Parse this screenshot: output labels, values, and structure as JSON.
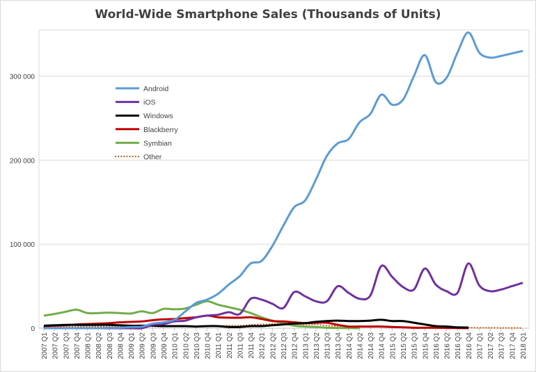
{
  "chart_data": {
    "type": "line",
    "title": "World-Wide Smartphone Sales (Thousands of Units)",
    "xlabel": "",
    "ylabel": "",
    "ylim": [
      0,
      355000
    ],
    "yticks": [
      0,
      100000,
      200000,
      300000
    ],
    "ytick_labels": [
      "0",
      "100 000",
      "200 000",
      "300 000"
    ],
    "grid": "horizontal",
    "legend_position": "top-left",
    "categories": [
      "2007 Q1",
      "2007 Q2",
      "2007 Q3",
      "2007 Q4",
      "2008 Q1",
      "2008 Q2",
      "2008 Q3",
      "2008 Q4",
      "2009 Q1",
      "2009 Q2",
      "2009 Q3",
      "2009 Q4",
      "2010 Q1",
      "2010 Q2",
      "2010 Q3",
      "2010 Q4",
      "2011 Q1",
      "2011 Q2",
      "2011 Q3",
      "2011 Q4",
      "2012 Q1",
      "2012 Q2",
      "2012 Q3",
      "2012 Q4",
      "2013 Q1",
      "2013 Q2",
      "2013 Q3",
      "2013 Q4",
      "2014 Q1",
      "2014 Q2",
      "2014 Q3",
      "2014 Q4",
      "2015 Q1",
      "2015 Q2",
      "2015 Q3",
      "2015 Q4",
      "2016 Q1",
      "2016 Q2",
      "2016 Q3",
      "2016 Q4",
      "2017 Q1",
      "2017 Q2",
      "2017 Q3",
      "2017 Q4",
      "2018 Q1"
    ],
    "series": [
      {
        "name": "Android",
        "color": "#5b9bd5",
        "style": "solid",
        "values": [
          0,
          0,
          0,
          0,
          0,
          0,
          500,
          600,
          1500,
          1800,
          5500,
          7000,
          10000,
          20000,
          30000,
          34000,
          41000,
          52000,
          62000,
          77000,
          80000,
          98000,
          122000,
          144000,
          152000,
          177000,
          205000,
          220000,
          225000,
          245000,
          255000,
          278000,
          266000,
          272000,
          300000,
          325000,
          293000,
          298000,
          328000,
          352000,
          328000,
          322000,
          324000,
          327000,
          330000
        ]
      },
      {
        "name": "iOS",
        "color": "#7030a0",
        "style": "solid",
        "values": [
          0,
          0,
          0,
          0,
          0,
          0,
          0,
          0,
          0,
          0,
          4000,
          5000,
          8000,
          9000,
          13000,
          15000,
          16000,
          19000,
          17000,
          35000,
          34000,
          29000,
          24000,
          43000,
          38000,
          32000,
          32000,
          50000,
          42000,
          35000,
          39000,
          74000,
          61000,
          49000,
          46000,
          71000,
          52000,
          44000,
          42000,
          77000,
          51000,
          44000,
          46000,
          50000,
          54000
        ]
      },
      {
        "name": "Windows",
        "color": "#000000",
        "style": "solid",
        "values": [
          3000,
          3500,
          4000,
          4000,
          4000,
          4000,
          4000,
          3500,
          3000,
          3000,
          3000,
          2500,
          2500,
          2500,
          2000,
          2500,
          2500,
          1500,
          1500,
          2500,
          2500,
          3500,
          4500,
          5500,
          6000,
          7500,
          8500,
          9000,
          8500,
          8500,
          9000,
          10000,
          8500,
          8500,
          6500,
          4500,
          2500,
          2000,
          1000,
          800,
          null,
          null,
          null,
          null,
          null
        ]
      },
      {
        "name": "Blackberry",
        "color": "#c00000",
        "style": "solid",
        "values": [
          2500,
          3000,
          3500,
          4500,
          5000,
          5500,
          6000,
          7000,
          7500,
          8000,
          9500,
          10500,
          11000,
          12000,
          13000,
          15000,
          13000,
          12500,
          12500,
          13000,
          11000,
          8500,
          8000,
          7000,
          6000,
          6500,
          6500,
          4000,
          2000,
          2000,
          2000,
          2000,
          1500,
          1000,
          500,
          500,
          500,
          300,
          200,
          100,
          null,
          null,
          null,
          null,
          null
        ]
      },
      {
        "name": "Symbian",
        "color": "#70ad47",
        "style": "solid",
        "values": [
          15000,
          17000,
          19500,
          22000,
          18000,
          18000,
          18500,
          18000,
          17500,
          20000,
          18000,
          23000,
          22500,
          23500,
          28000,
          32000,
          28000,
          25000,
          22000,
          18000,
          13000,
          9000,
          6000,
          3000,
          2000,
          1500,
          500,
          300,
          100,
          0,
          null,
          null,
          null,
          null,
          null,
          null,
          null,
          null,
          null,
          null,
          null,
          null,
          null,
          null,
          null
        ]
      },
      {
        "name": "Other",
        "color": "#c55a11",
        "style": "dotted",
        "values": [
          1500,
          1500,
          1500,
          2000,
          2000,
          2000,
          2000,
          2000,
          2000,
          2000,
          2000,
          2000,
          2000,
          2000,
          2500,
          2500,
          2500,
          3000,
          3000,
          4000,
          4500,
          5000,
          5500,
          5000,
          4500,
          4500,
          3000,
          2500,
          2000,
          2000,
          2000,
          1800,
          1500,
          1500,
          1200,
          1000,
          1000,
          800,
          800,
          700,
          500,
          500,
          300,
          300,
          200
        ]
      }
    ]
  }
}
